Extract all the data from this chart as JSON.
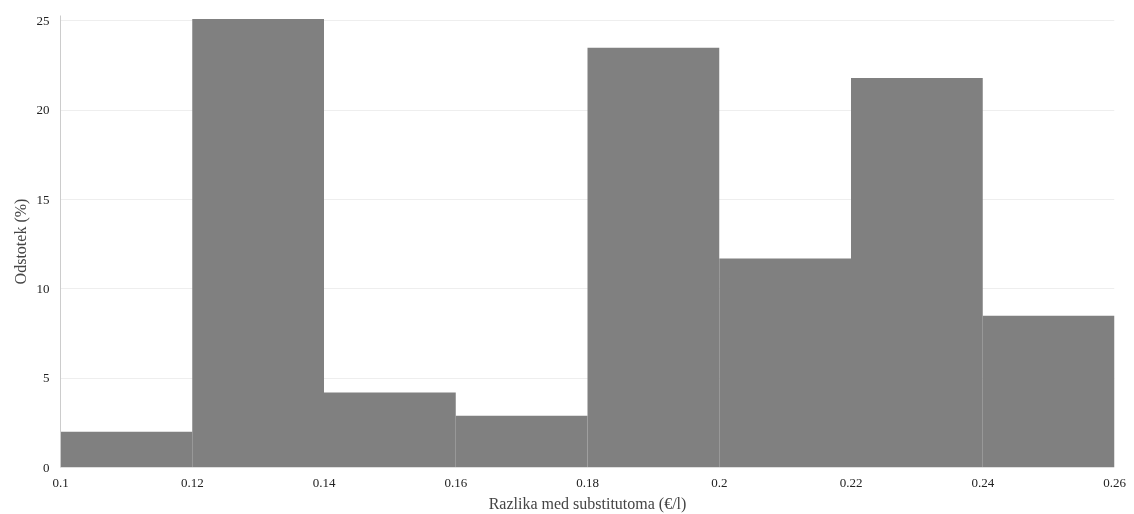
{
  "chart_data": {
    "type": "histogram",
    "xlabel": "Razlika med substitutoma (€/l)",
    "ylabel": "Odstotek (%)",
    "bins": [
      0.1,
      0.12,
      0.14,
      0.16,
      0.18,
      0.2,
      0.22,
      0.24,
      0.26
    ],
    "values": [
      2.0,
      25.1,
      4.2,
      2.9,
      23.5,
      11.7,
      21.8,
      8.5
    ],
    "color": "#808080",
    "xlim": [
      0.1,
      0.26
    ],
    "xticks": [
      0.1,
      0.12,
      0.14,
      0.16,
      0.18,
      0.2,
      0.22,
      0.24,
      0.26
    ],
    "ylim": [
      0,
      25.3
    ],
    "yticks": [
      0,
      5,
      10,
      15,
      20,
      25
    ],
    "grid": "y"
  }
}
